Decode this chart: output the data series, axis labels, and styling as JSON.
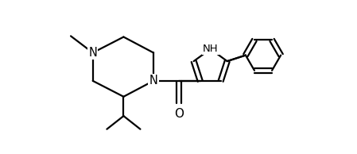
{
  "background": "#ffffff",
  "lw": 1.6,
  "lw_thin": 1.4,
  "xlim": [
    -2.8,
    2.5
  ],
  "ylim": [
    -1.1,
    1.6
  ],
  "figsize": [
    4.49,
    1.94
  ],
  "dpi": 100
}
